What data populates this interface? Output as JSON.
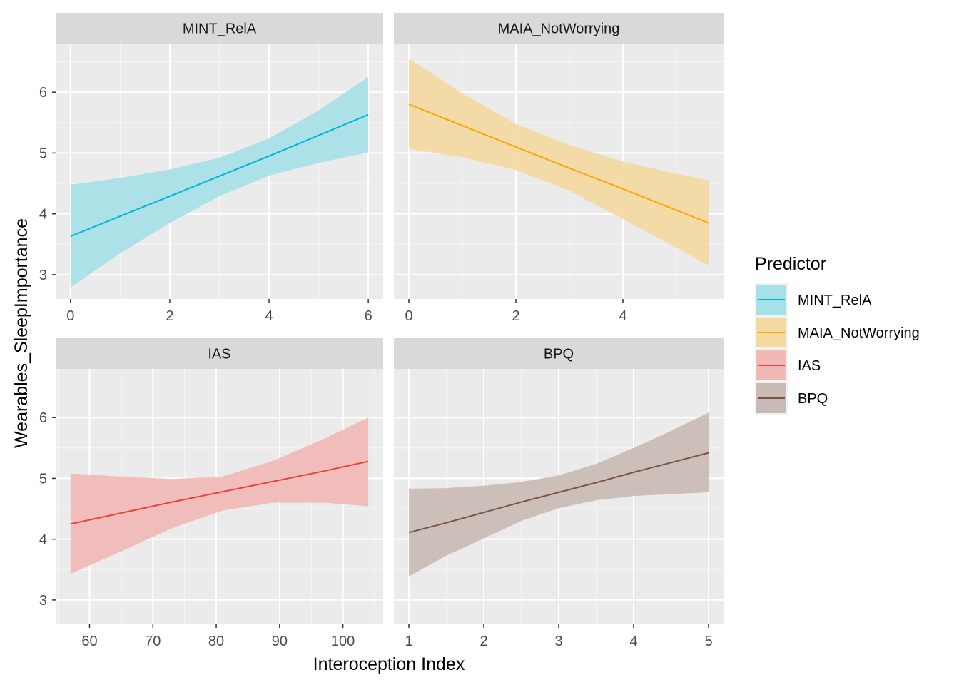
{
  "chart_data": {
    "type": "line",
    "xlabel": "Interoception Index",
    "ylabel": "Wearables_SleepImportance",
    "ylim": [
      2.6,
      6.8
    ],
    "yticks": [
      3,
      4,
      5,
      6
    ],
    "grid": true,
    "legend": {
      "title": "Predictor",
      "placement": "right",
      "entries": [
        "MINT_RelA",
        "MAIA_NotWorrying",
        "IAS",
        "BPQ"
      ]
    },
    "panels": [
      {
        "name": "MINT_RelA",
        "color": "#00b4d8",
        "fill": "#a6e0e8",
        "xlim": [
          -0.3,
          6.3
        ],
        "xticks": [
          0,
          2,
          4,
          6
        ],
        "x": [
          0,
          1,
          2,
          3,
          4,
          5,
          6
        ],
        "fit": [
          3.63,
          3.96,
          4.29,
          4.62,
          4.95,
          5.29,
          5.63
        ],
        "lower": [
          2.79,
          3.35,
          3.85,
          4.29,
          4.63,
          4.84,
          5.01
        ],
        "upper": [
          4.48,
          4.59,
          4.73,
          4.92,
          5.24,
          5.7,
          6.25
        ]
      },
      {
        "name": "MAIA_NotWorrying",
        "color": "#ffa500",
        "fill": "#f4d9a1",
        "xlim": [
          -0.28,
          5.88
        ],
        "xticks": [
          0,
          2,
          4
        ],
        "x": [
          0,
          1,
          2,
          3,
          4,
          5,
          5.6
        ],
        "fit": [
          5.8,
          5.45,
          5.1,
          4.75,
          4.41,
          4.06,
          3.85
        ],
        "lower": [
          5.07,
          4.93,
          4.72,
          4.38,
          3.91,
          3.44,
          3.15
        ],
        "upper": [
          6.55,
          5.98,
          5.48,
          5.13,
          4.86,
          4.66,
          4.55
        ]
      },
      {
        "name": "IAS",
        "color": "#e8413a",
        "fill": "#f2b8b5",
        "xlim": [
          54.65,
          106.35
        ],
        "xticks": [
          60,
          70,
          80,
          90,
          100
        ],
        "x": [
          57,
          65,
          73,
          81,
          89,
          97,
          104
        ],
        "fit": [
          4.25,
          4.43,
          4.61,
          4.78,
          4.95,
          5.12,
          5.28
        ],
        "lower": [
          3.43,
          3.8,
          4.18,
          4.47,
          4.6,
          4.6,
          4.54
        ],
        "upper": [
          5.08,
          5.03,
          4.99,
          5.03,
          5.29,
          5.65,
          6.0
        ]
      },
      {
        "name": "BPQ",
        "color": "#7b5446",
        "fill": "#c9bab5",
        "xlim": [
          0.8,
          5.2
        ],
        "xticks": [
          1,
          2,
          3,
          4,
          5
        ],
        "x": [
          1,
          1.5,
          2,
          2.5,
          3,
          3.5,
          4,
          4.5,
          5
        ],
        "fit": [
          4.11,
          4.27,
          4.44,
          4.61,
          4.77,
          4.93,
          5.1,
          5.26,
          5.42
        ],
        "lower": [
          3.39,
          3.73,
          4.01,
          4.3,
          4.51,
          4.64,
          4.71,
          4.74,
          4.77
        ],
        "upper": [
          4.83,
          4.84,
          4.88,
          4.94,
          5.05,
          5.24,
          5.5,
          5.78,
          6.08
        ]
      }
    ]
  }
}
